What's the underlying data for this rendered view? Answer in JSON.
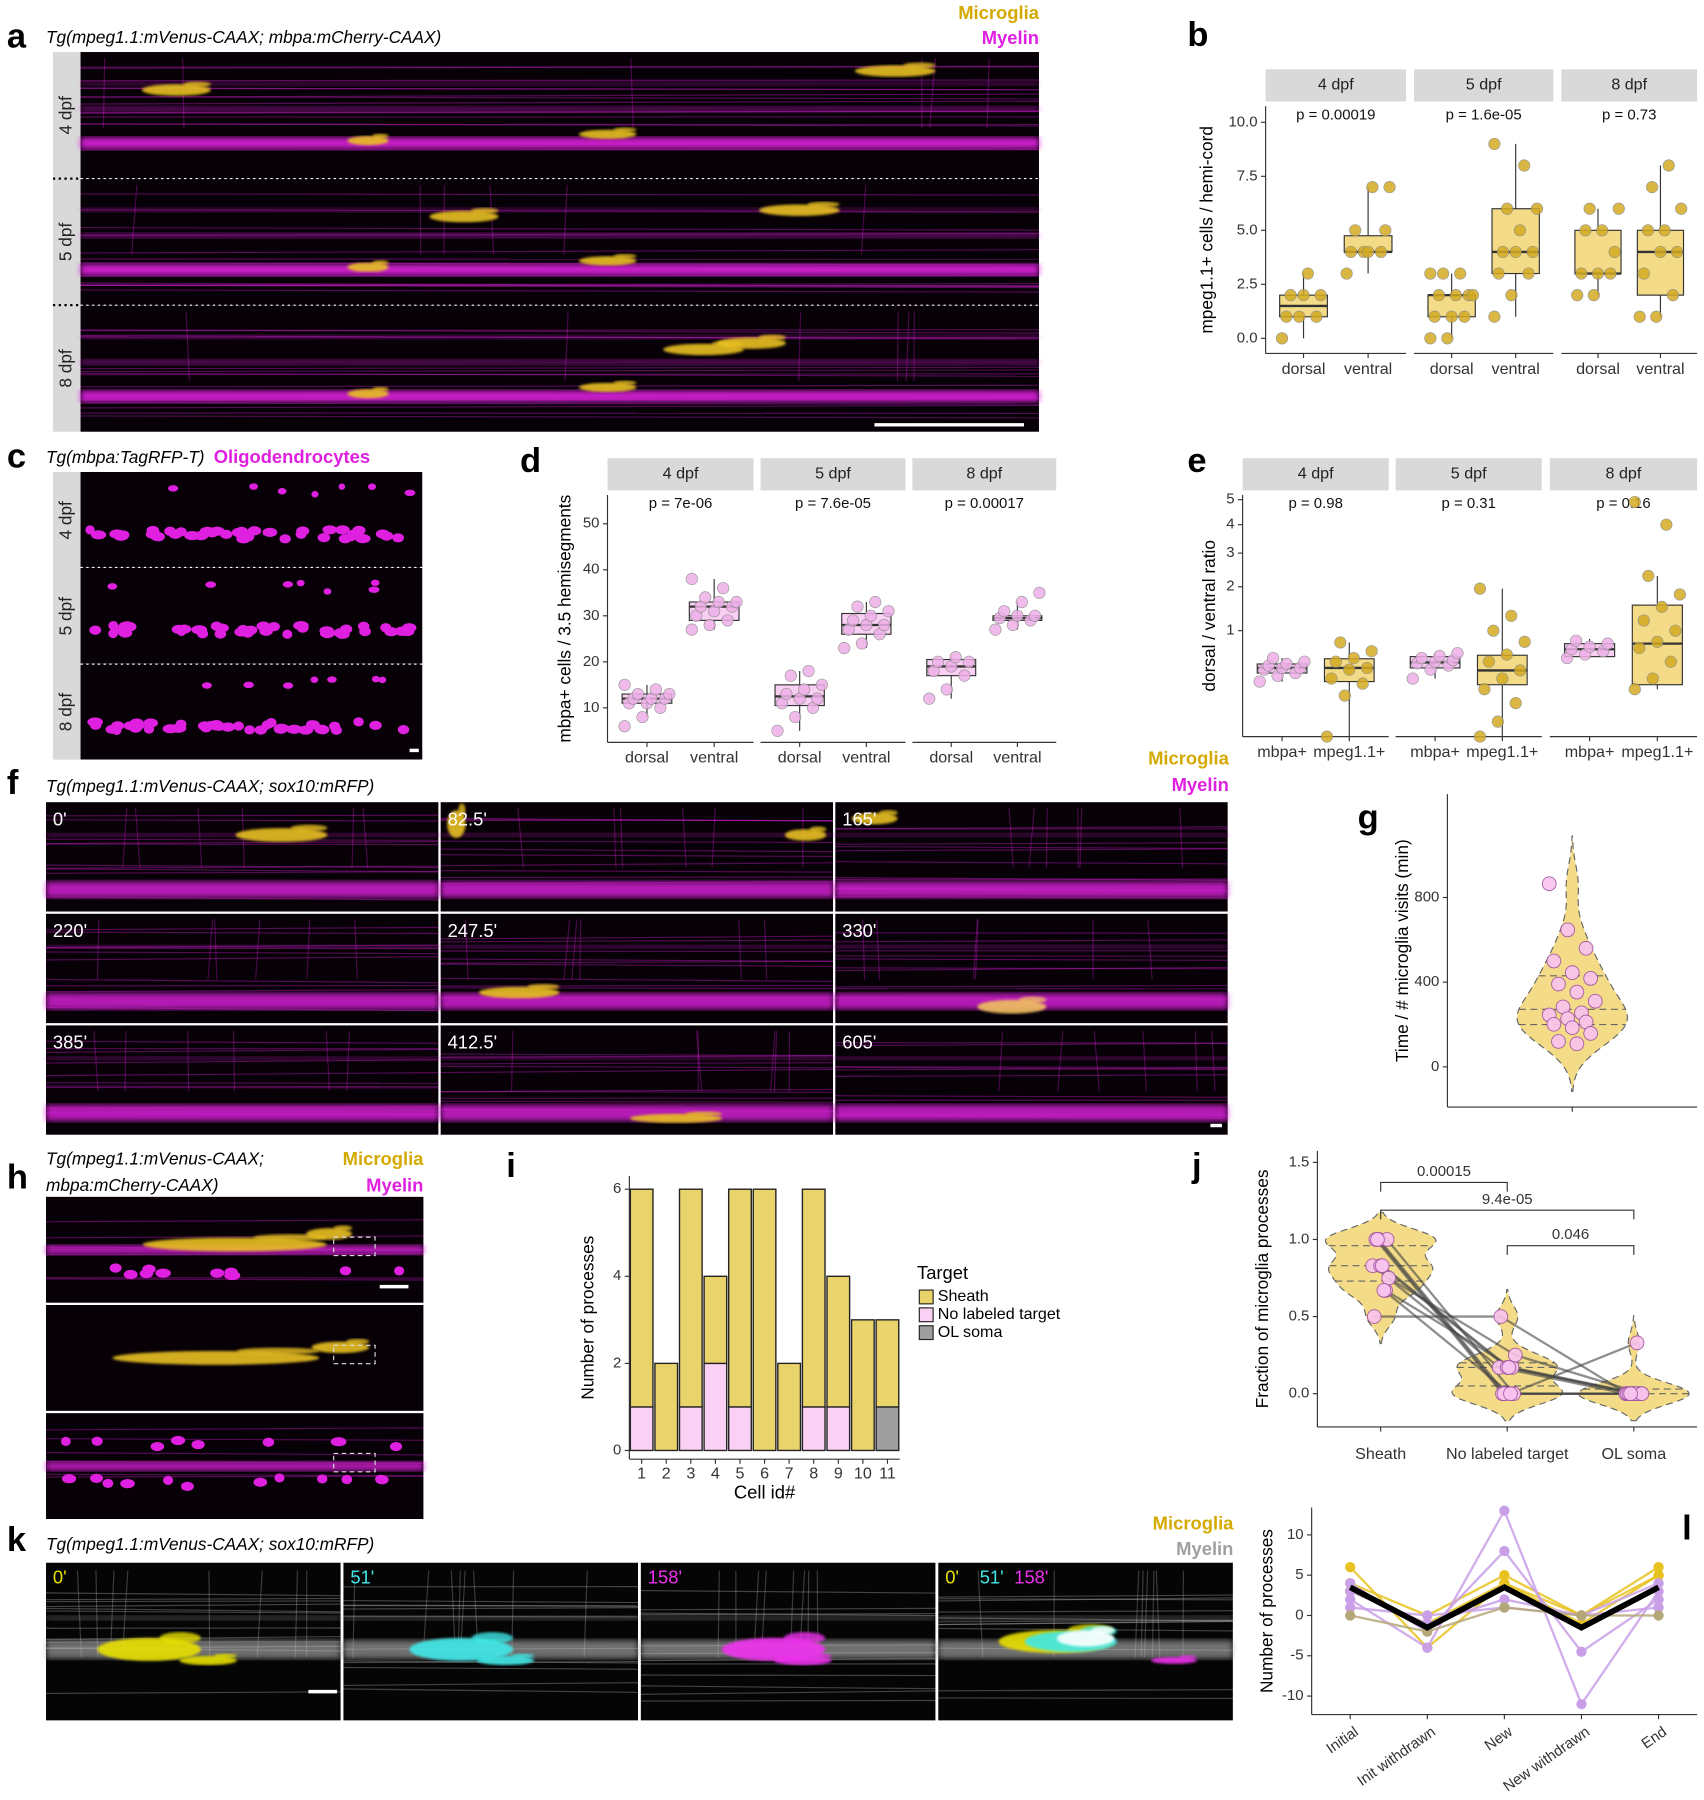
{
  "images": [
    {
      "panel": "a",
      "title": "Tg(mpeg1.1:mVenus-CAAX; mbpa:mCherry-CAAX)",
      "channels": [
        {
          "label": "Microglia",
          "color": "#d4aa00"
        },
        {
          "label": "Myelin",
          "color": "#e020e0"
        }
      ],
      "rows": [
        "4 dpf",
        "5 dpf",
        "8 dpf"
      ]
    },
    {
      "panel": "c",
      "title": "Tg(mbpa:TagRFP-T)",
      "channels": [
        {
          "label": "Oligodendrocytes",
          "color": "#e020e0"
        }
      ],
      "rows": [
        "4 dpf",
        "5 dpf",
        "8 dpf"
      ]
    },
    {
      "panel": "f",
      "title": "Tg(mpeg1.1:mVenus-CAAX; sox10:mRFP)",
      "channels": [
        {
          "label": "Microglia",
          "color": "#d4aa00"
        },
        {
          "label": "Myelin",
          "color": "#e020e0"
        }
      ],
      "frames": [
        "0'",
        "82.5'",
        "165'",
        "220'",
        "247.5'",
        "330'",
        "385'",
        "412.5'",
        "605'"
      ]
    },
    {
      "panel": "h",
      "title": [
        "Tg(mpeg1.1:mVenus-CAAX;",
        "mbpa:mCherry-CAAX)"
      ],
      "channels": [
        {
          "label": "Microglia",
          "color": "#d4aa00"
        },
        {
          "label": "Myelin",
          "color": "#e020e0"
        }
      ]
    },
    {
      "panel": "k",
      "title": "Tg(mpeg1.1:mVenus-CAAX; sox10:mRFP)",
      "channels": [
        {
          "label": "Microglia",
          "color": "#d4aa00"
        },
        {
          "label": "Myelin",
          "color": "#a0a0a0"
        }
      ],
      "frames": [
        {
          "label": "0'",
          "color": "#e8e000"
        },
        {
          "label": "51'",
          "color": "#40e8e8"
        },
        {
          "label": "158'",
          "color": "#f030f0"
        }
      ]
    }
  ],
  "chart_data": [
    {
      "panel": "b",
      "type": "box",
      "facets": [
        "4 dpf",
        "5 dpf",
        "8 dpf"
      ],
      "annotations": [
        "p = 0.00019",
        "p = 1.6e-05",
        "p = 0.73"
      ],
      "categories": [
        "dorsal",
        "ventral"
      ],
      "colors": [
        "#f3db87",
        "#f3db87"
      ],
      "point_colors": [
        "#d4aa22",
        "#d4aa22"
      ],
      "y_label": "mpeg1.1+ cells / hemi-cord",
      "ylim": [
        -0.7,
        10.75
      ],
      "yticks": [
        {
          "value": 0,
          "label": "0.0"
        },
        {
          "value": 2.5,
          "label": "2.5"
        },
        {
          "value": 5,
          "label": "5.0"
        },
        {
          "value": 7.5,
          "label": "7.5"
        },
        {
          "value": 10,
          "label": "10.0"
        }
      ],
      "boxes": [
        [
          {
            "q1": 1,
            "median": 1.5,
            "q3": 2,
            "whisker_low": 0,
            "whisker_high": 3,
            "points": [
              0,
              1,
              1,
              1,
              2,
              2,
              2,
              3
            ]
          },
          {
            "q1": 4,
            "median": 4,
            "q3": 4.75,
            "whisker_low": 3,
            "whisker_high": 7,
            "points": [
              3,
              4,
              4,
              4,
              4,
              5,
              5,
              7,
              7
            ]
          }
        ],
        [
          {
            "q1": 1,
            "median": 2,
            "q3": 2,
            "whisker_low": 0,
            "whisker_high": 3,
            "points": [
              0,
              0,
              1,
              1,
              1,
              2,
              2,
              2,
              2,
              3,
              3,
              3
            ]
          },
          {
            "q1": 3,
            "median": 4,
            "q3": 6,
            "whisker_low": 1,
            "whisker_high": 9,
            "points": [
              1,
              2,
              3,
              3,
              4,
              4,
              4,
              5,
              6,
              6,
              8,
              9
            ]
          }
        ],
        [
          {
            "q1": 3,
            "median": 3,
            "q3": 5,
            "whisker_low": 2,
            "whisker_high": 6,
            "points": [
              2,
              2,
              3,
              3,
              3,
              4,
              5,
              5,
              6,
              6
            ]
          },
          {
            "q1": 2,
            "median": 4,
            "q3": 5,
            "whisker_low": 1,
            "whisker_high": 8,
            "points": [
              1,
              1,
              2,
              3,
              4,
              4,
              5,
              5,
              6,
              7,
              8
            ]
          }
        ]
      ]
    },
    {
      "panel": "d",
      "type": "box",
      "facets": [
        "4 dpf",
        "5 dpf",
        "8 dpf"
      ],
      "annotations": [
        "p = 7e-06",
        "p = 7.6e-05",
        "p = 0.00017"
      ],
      "categories": [
        "dorsal",
        "ventral"
      ],
      "colors": [
        "#f9d0f3",
        "#f9d0f3"
      ],
      "point_colors": [
        "#eeb0e8",
        "#eeb0e8"
      ],
      "y_label": "mbpa+ cells / 3.5 hemisegments",
      "ylim": [
        2.5,
        56.25
      ],
      "yticks": [
        10,
        20,
        30,
        40,
        50
      ],
      "boxes": [
        [
          {
            "q1": 11,
            "median": 12,
            "q3": 13,
            "whisker_low": 8,
            "whisker_high": 15,
            "points": [
              6,
              8,
              10,
              11,
              11,
              12,
              12,
              12,
              13,
              13,
              14,
              15
            ]
          },
          {
            "q1": 29,
            "median": 32,
            "q3": 33,
            "whisker_low": 27,
            "whisker_high": 38,
            "points": [
              27,
              28,
              29,
              30,
              31,
              32,
              32,
              33,
              33,
              34,
              36,
              38
            ]
          }
        ],
        [
          {
            "q1": 10.5,
            "median": 12.5,
            "q3": 15,
            "whisker_low": 5,
            "whisker_high": 18,
            "points": [
              5,
              8,
              10,
              11,
              12,
              12,
              13,
              14,
              15,
              17,
              18
            ]
          },
          {
            "q1": 26,
            "median": 28,
            "q3": 30.5,
            "whisker_low": 23,
            "whisker_high": 33,
            "points": [
              23,
              24,
              26,
              27,
              28,
              28,
              29,
              30,
              31,
              32,
              33
            ]
          }
        ],
        [
          {
            "q1": 17,
            "median": 19,
            "q3": 20.5,
            "whisker_low": 12,
            "whisker_high": 21,
            "points": [
              12,
              14,
              17,
              18,
              19,
              20,
              20,
              21
            ]
          },
          {
            "q1": 29,
            "median": 29.5,
            "q3": 30,
            "whisker_low": 27,
            "whisker_high": 33,
            "points": [
              27,
              28,
              29,
              29.5,
              30,
              30,
              31,
              33,
              35
            ]
          }
        ]
      ]
    },
    {
      "panel": "e",
      "type": "box",
      "facets": [
        "4 dpf",
        "5 dpf",
        "8 dpf"
      ],
      "annotations": [
        "p = 0.98",
        "p = 0.31",
        "p = 0.16"
      ],
      "categories": [
        "mbpa+",
        "mpeg1.1+"
      ],
      "colors": [
        "#f9d0f3",
        "#f3db87"
      ],
      "point_colors": [
        "#eeb0e8",
        "#d4aa22"
      ],
      "y_label": "dorsal / ventral ratio",
      "y_scale": "sqrt",
      "ylim": [
        0,
        5.2
      ],
      "yticks": [
        1,
        2,
        3,
        4,
        5
      ],
      "boxes": [
        [
          {
            "q1": 0.36,
            "median": 0.42,
            "q3": 0.47,
            "whisker_low": 0.27,
            "whisker_high": 0.55,
            "points": [
              0.27,
              0.33,
              0.36,
              0.4,
              0.42,
              0.42,
              0.45,
              0.47,
              0.5,
              0.55
            ]
          },
          {
            "q1": 0.27,
            "median": 0.42,
            "q3": 0.54,
            "whisker_low": 0,
            "whisker_high": 0.79,
            "points": [
              0,
              0.15,
              0.25,
              0.3,
              0.4,
              0.42,
              0.5,
              0.55,
              0.65,
              0.79
            ]
          }
        ],
        [
          {
            "q1": 0.42,
            "median": 0.49,
            "q3": 0.57,
            "whisker_low": 0.3,
            "whisker_high": 0.62,
            "points": [
              0.3,
              0.4,
              0.45,
              0.48,
              0.5,
              0.52,
              0.55,
              0.58,
              0.62
            ]
          },
          {
            "q1": 0.24,
            "median": 0.39,
            "q3": 0.59,
            "whisker_low": 0,
            "whisker_high": 1.95,
            "points": [
              0,
              0.02,
              0.1,
              0.2,
              0.3,
              0.39,
              0.5,
              0.6,
              0.8,
              1,
              1.3,
              1.95
            ]
          }
        ],
        [
          {
            "q1": 0.57,
            "median": 0.68,
            "q3": 0.77,
            "whisker_low": 0.55,
            "whisker_high": 0.85,
            "points": [
              0.55,
              0.6,
              0.65,
              0.68,
              0.72,
              0.77,
              0.82
            ]
          },
          {
            "q1": 0.24,
            "median": 0.77,
            "q3": 1.54,
            "whisker_low": 0.2,
            "whisker_high": 2.3,
            "points": [
              0.2,
              0.3,
              0.5,
              0.7,
              0.8,
              1,
              1.2,
              1.5,
              1.8,
              2.3,
              4,
              4.9
            ]
          }
        ]
      ]
    },
    {
      "panel": "g",
      "type": "violin",
      "y_label": "Time / # microglia visits (min)",
      "ylim": [
        -190,
        1288
      ],
      "yticks": [
        0,
        400,
        800
      ],
      "color": "#f3db87",
      "point_color": "#f9c4ef",
      "points": [
        865,
        647,
        560,
        500,
        445,
        418,
        391,
        353,
        310,
        283,
        255,
        245,
        228,
        212,
        201,
        185,
        158,
        120,
        109
      ],
      "quantiles": [
        200,
        272,
        430
      ]
    },
    {
      "panel": "i",
      "type": "bar",
      "y_label": "Number of processes",
      "x_label": "Cell id#",
      "legend_title": "Target",
      "ylim": [
        -0.2,
        6.3
      ],
      "yticks": [
        0,
        2,
        4,
        6
      ],
      "categories": [
        "1",
        "2",
        "3",
        "4",
        "5",
        "6",
        "7",
        "8",
        "9",
        "10",
        "11"
      ],
      "series": [
        {
          "name": "No labeled target",
          "color": "#fbd0f5",
          "values": [
            1,
            0,
            1,
            2,
            1,
            0,
            0,
            1,
            1,
            0,
            0
          ]
        },
        {
          "name": "OL soma",
          "color": "#9e9e9e",
          "values": [
            0,
            0,
            0,
            0,
            0,
            0,
            0,
            0,
            0,
            0,
            1
          ]
        },
        {
          "name": "Sheath",
          "color": "#e9d36b",
          "values": [
            5,
            2,
            5,
            2,
            5,
            6,
            2,
            5,
            3,
            3,
            2
          ]
        }
      ],
      "legend_order": [
        2,
        0,
        1
      ]
    },
    {
      "panel": "j",
      "type": "violin",
      "y_label": "Fraction of microglia processes",
      "ylim": [
        -0.216,
        1.575
      ],
      "yticks": [
        {
          "value": 0,
          "label": "0.0"
        },
        {
          "value": 0.5,
          "label": "0.5"
        },
        {
          "value": 1,
          "label": "1.0"
        },
        {
          "value": 1.5,
          "label": "1.5"
        }
      ],
      "color": "#f3db87",
      "point_color": "#f9c4ef",
      "categories": [
        "Sheath",
        "No labeled target",
        "OL soma"
      ],
      "points": [
        [
          0.83,
          1,
          0.67,
          0.5,
          0.83,
          1,
          1,
          0.83,
          0.75,
          1,
          0.67
        ],
        [
          0.17,
          0,
          0.17,
          0.5,
          0.17,
          0,
          0,
          0.17,
          0.25,
          0,
          0
        ],
        [
          0,
          0,
          0,
          0,
          0,
          0,
          0,
          0,
          0,
          0,
          0.33
        ]
      ],
      "quantiles": [
        [
          0.73,
          0.83,
          0.96
        ],
        [
          0.05,
          0.17,
          0.2
        ],
        [
          0,
          0.03
        ]
      ],
      "brackets": [
        {
          "from": 0,
          "to": 1,
          "y": 1.37,
          "label": "0.00015"
        },
        {
          "from": 0,
          "to": 2,
          "y": 1.19,
          "label": "9.4e-05"
        },
        {
          "from": 1,
          "to": 2,
          "y": 0.96,
          "label": "0.046"
        }
      ]
    },
    {
      "panel": "l",
      "type": "line",
      "y_label": "Number of processes",
      "ylim": [
        -12.3,
        13.4
      ],
      "yticks": [
        -10,
        -5,
        0,
        5,
        10
      ],
      "categories": [
        "Initial",
        "Init withdrawn",
        "New",
        "New withdrawn",
        "End"
      ],
      "series": [
        {
          "color": "#e8c21e",
          "values": [
            6,
            -4,
            4,
            -1,
            5
          ]
        },
        {
          "color": "#e8c21e",
          "values": [
            3,
            -1,
            4,
            0,
            5
          ]
        },
        {
          "color": "#e8c21e",
          "values": [
            4,
            0,
            5,
            0,
            6
          ]
        },
        {
          "color": "#c9a0e8",
          "values": [
            2,
            -4,
            13,
            -11,
            3
          ]
        },
        {
          "color": "#c9a0e8",
          "values": [
            4,
            -2,
            8,
            -4.5,
            2
          ]
        },
        {
          "color": "#c9a0e8",
          "values": [
            3,
            -1,
            2,
            0,
            4
          ]
        },
        {
          "color": "#c9a0e8",
          "values": [
            1,
            0,
            1,
            0,
            1
          ]
        },
        {
          "color": "#b5a878",
          "values": [
            0,
            -2,
            1,
            0,
            0
          ]
        }
      ],
      "mean": {
        "color": "#000000",
        "values": [
          3.5,
          -1.5,
          3.5,
          -1.5,
          3.5
        ]
      }
    }
  ]
}
